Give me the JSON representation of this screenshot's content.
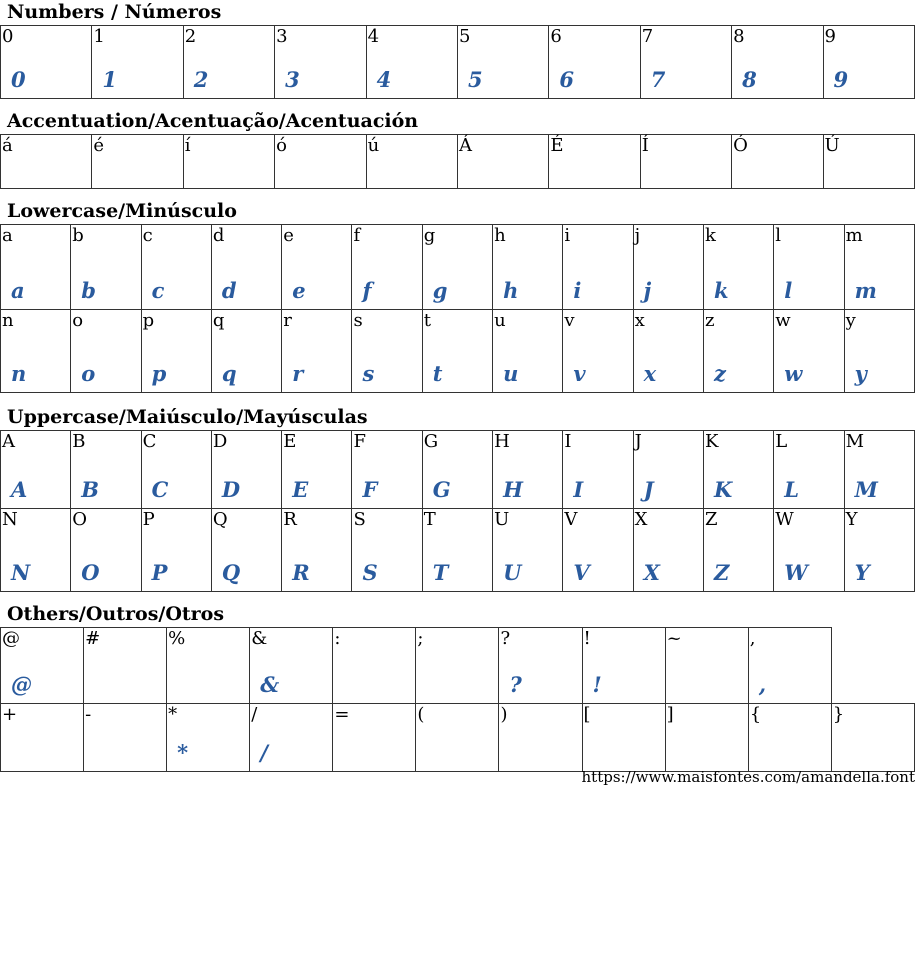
{
  "sections": [
    {
      "title": "Numbers / Números",
      "rows": [
        [
          [
            "0",
            "0"
          ],
          [
            "1",
            "1"
          ],
          [
            "2",
            "2"
          ],
          [
            "3",
            "3"
          ],
          [
            "4",
            "4"
          ],
          [
            "5",
            "5"
          ],
          [
            "6",
            "6"
          ],
          [
            "7",
            "7"
          ],
          [
            "8",
            "8"
          ],
          [
            "9",
            "9"
          ]
        ]
      ]
    },
    {
      "title": "Accentuation/Acentuação/Acentuación",
      "rows": [
        [
          [
            "á",
            ""
          ],
          [
            "é",
            ""
          ],
          [
            "í",
            ""
          ],
          [
            "ó",
            ""
          ],
          [
            "ú",
            ""
          ],
          [
            "Á",
            ""
          ],
          [
            "É",
            ""
          ],
          [
            "Í",
            ""
          ],
          [
            "Ó",
            ""
          ],
          [
            "Ú",
            ""
          ]
        ]
      ]
    },
    {
      "title": "Lowercase/Minúsculo",
      "rows": [
        [
          [
            "a",
            "a"
          ],
          [
            "b",
            "b"
          ],
          [
            "c",
            "c"
          ],
          [
            "d",
            "d"
          ],
          [
            "e",
            "e"
          ],
          [
            "f",
            "f"
          ],
          [
            "g",
            "g"
          ],
          [
            "h",
            "h"
          ],
          [
            "i",
            "i"
          ],
          [
            "j",
            "j"
          ],
          [
            "k",
            "k"
          ],
          [
            "l",
            "l"
          ],
          [
            "m",
            "m"
          ]
        ],
        [
          [
            "n",
            "n"
          ],
          [
            "o",
            "o"
          ],
          [
            "p",
            "p"
          ],
          [
            "q",
            "q"
          ],
          [
            "r",
            "r"
          ],
          [
            "s",
            "s"
          ],
          [
            "t",
            "t"
          ],
          [
            "u",
            "u"
          ],
          [
            "v",
            "v"
          ],
          [
            "x",
            "x"
          ],
          [
            "z",
            "z"
          ],
          [
            "w",
            "w"
          ],
          [
            "y",
            "y"
          ]
        ]
      ]
    },
    {
      "title": "Uppercase/Maiúsculo/Mayúsculas",
      "rows": [
        [
          [
            "A",
            "A"
          ],
          [
            "B",
            "B"
          ],
          [
            "C",
            "C"
          ],
          [
            "D",
            "D"
          ],
          [
            "E",
            "E"
          ],
          [
            "F",
            "F"
          ],
          [
            "G",
            "G"
          ],
          [
            "H",
            "H"
          ],
          [
            "I",
            "I"
          ],
          [
            "J",
            "J"
          ],
          [
            "K",
            "K"
          ],
          [
            "L",
            "L"
          ],
          [
            "M",
            "M"
          ]
        ],
        [
          [
            "N",
            "N"
          ],
          [
            "O",
            "O"
          ],
          [
            "P",
            "P"
          ],
          [
            "Q",
            "Q"
          ],
          [
            "R",
            "R"
          ],
          [
            "S",
            "S"
          ],
          [
            "T",
            "T"
          ],
          [
            "U",
            "U"
          ],
          [
            "V",
            "V"
          ],
          [
            "X",
            "X"
          ],
          [
            "Z",
            "Z"
          ],
          [
            "W",
            "W"
          ],
          [
            "Y",
            "Y"
          ]
        ]
      ]
    },
    {
      "title": "Others/Outros/Otros",
      "rows": [
        [
          [
            "@",
            "@"
          ],
          [
            "#",
            ""
          ],
          [
            "%",
            ""
          ],
          [
            "&",
            "&"
          ],
          [
            ":",
            ""
          ],
          [
            ";",
            ""
          ],
          [
            "?",
            "?"
          ],
          [
            "!",
            "!"
          ],
          [
            "~",
            ""
          ],
          [
            ",",
            ","
          ]
        ],
        [
          [
            "+",
            ""
          ],
          [
            "-",
            ""
          ],
          [
            "*",
            "*"
          ],
          [
            "/",
            "/"
          ],
          [
            "=",
            ""
          ],
          [
            "(",
            ""
          ],
          [
            ")",
            ""
          ],
          [
            "[",
            ""
          ],
          [
            "]",
            ""
          ],
          [
            "{",
            ""
          ],
          [
            "}",
            ""
          ]
        ]
      ]
    }
  ],
  "footer_url": "https://www.maisfontes.com/amandella.font",
  "colors": {
    "glyph": "#2a5b9e",
    "border": "#333333"
  }
}
